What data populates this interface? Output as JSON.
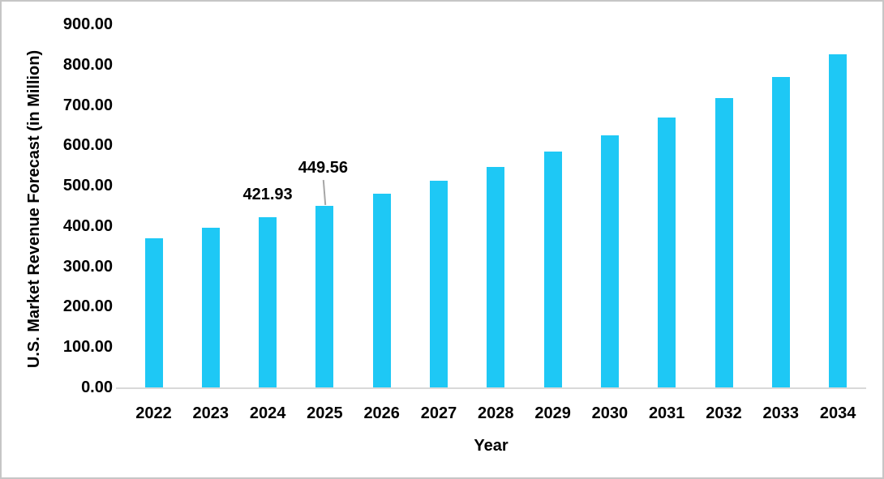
{
  "chart_data": {
    "type": "bar",
    "title": "",
    "xlabel": "Year",
    "ylabel": "U.S. Market Revenue Forecast (in Million)",
    "categories": [
      "2022",
      "2023",
      "2024",
      "2025",
      "2026",
      "2027",
      "2028",
      "2029",
      "2030",
      "2031",
      "2032",
      "2033",
      "2034"
    ],
    "values": [
      370,
      395,
      421.93,
      449.56,
      480,
      512,
      546,
      585,
      625,
      669,
      717,
      770,
      826
    ],
    "y_ticks": [
      "0.00",
      "100.00",
      "200.00",
      "300.00",
      "400.00",
      "500.00",
      "600.00",
      "700.00",
      "800.00",
      "900.00"
    ],
    "ylim": [
      0,
      900
    ],
    "grid": false,
    "legend": false,
    "annotations": [
      {
        "category": "2024",
        "label": "421.93",
        "leader_line": false
      },
      {
        "category": "2025",
        "label": "449.56",
        "leader_line": true
      }
    ],
    "colors": {
      "bar": "#1ec8f5",
      "axis_line": "#d9d9d9",
      "leader_line": "#a6a6a6",
      "text": "#000000",
      "frame_border": "#c6c6c6"
    }
  }
}
